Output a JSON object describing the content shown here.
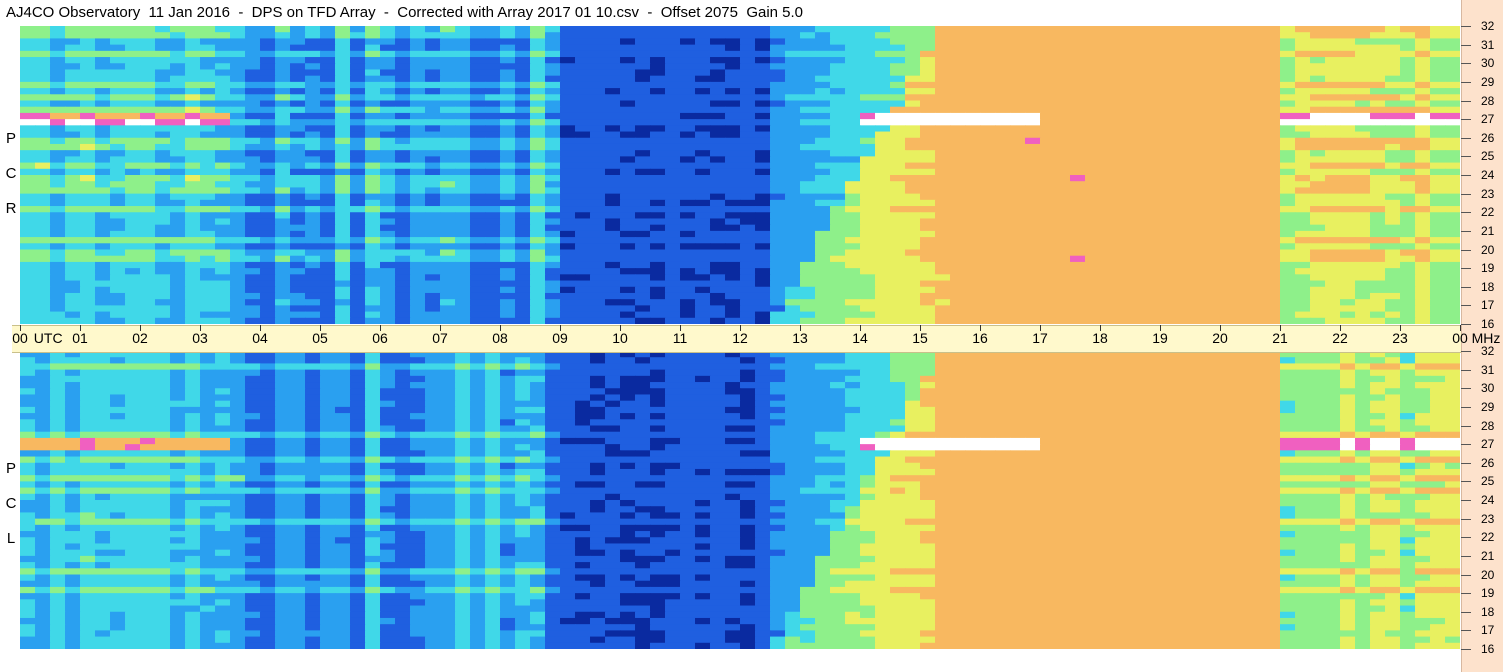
{
  "title": "AJ4CO Observatory  11 Jan 2016  -  DPS on TFD Array  -  Corrected with Array 2017 01 10.csv  -  Offset 2075  Gain 5.0",
  "panels": [
    {
      "label_letters": [
        "P",
        "C",
        "R"
      ]
    },
    {
      "label_letters": [
        "P",
        "C",
        "L"
      ]
    }
  ],
  "chart_data": {
    "type": "heatmap",
    "title": "AJ4CO Observatory  11 Jan 2016  -  DPS on TFD Array  -  Corrected with Array 2017 01 10.csv  -  Offset 2075  Gain 5.0",
    "x_axis_label": "UTC",
    "x_tick_labels": [
      "00",
      "01",
      "02",
      "03",
      "04",
      "05",
      "06",
      "07",
      "08",
      "09",
      "10",
      "11",
      "12",
      "13",
      "14",
      "15",
      "16",
      "17",
      "18",
      "19",
      "20",
      "21",
      "22",
      "23",
      "00"
    ],
    "x_range_hours": [
      0,
      24
    ],
    "y_axis_unit": "MHz",
    "y_tick_labels": [
      "32",
      "31",
      "30",
      "29",
      "28",
      "27",
      "26",
      "25",
      "24",
      "23",
      "22",
      "21",
      "20",
      "19",
      "18",
      "17",
      "16"
    ],
    "y_range_mhz": [
      16,
      32
    ],
    "series": [
      {
        "name": "RCP",
        "description_values": {
          "peak_band_mhz": 27,
          "activity_start_utc": 12.5,
          "activity_end_utc": 21
        }
      },
      {
        "name": "LCP",
        "description_values": {
          "peak_band_mhz": 27,
          "activity_start_utc": 12.5,
          "activity_end_utc": 21
        }
      }
    ],
    "colorscale": [
      "#0a2aa0",
      "#1f5fe0",
      "#2aa0f0",
      "#40d8e8",
      "#8ef08a",
      "#e8f060",
      "#f8b860",
      "#f060c0",
      "#ffffff"
    ]
  }
}
